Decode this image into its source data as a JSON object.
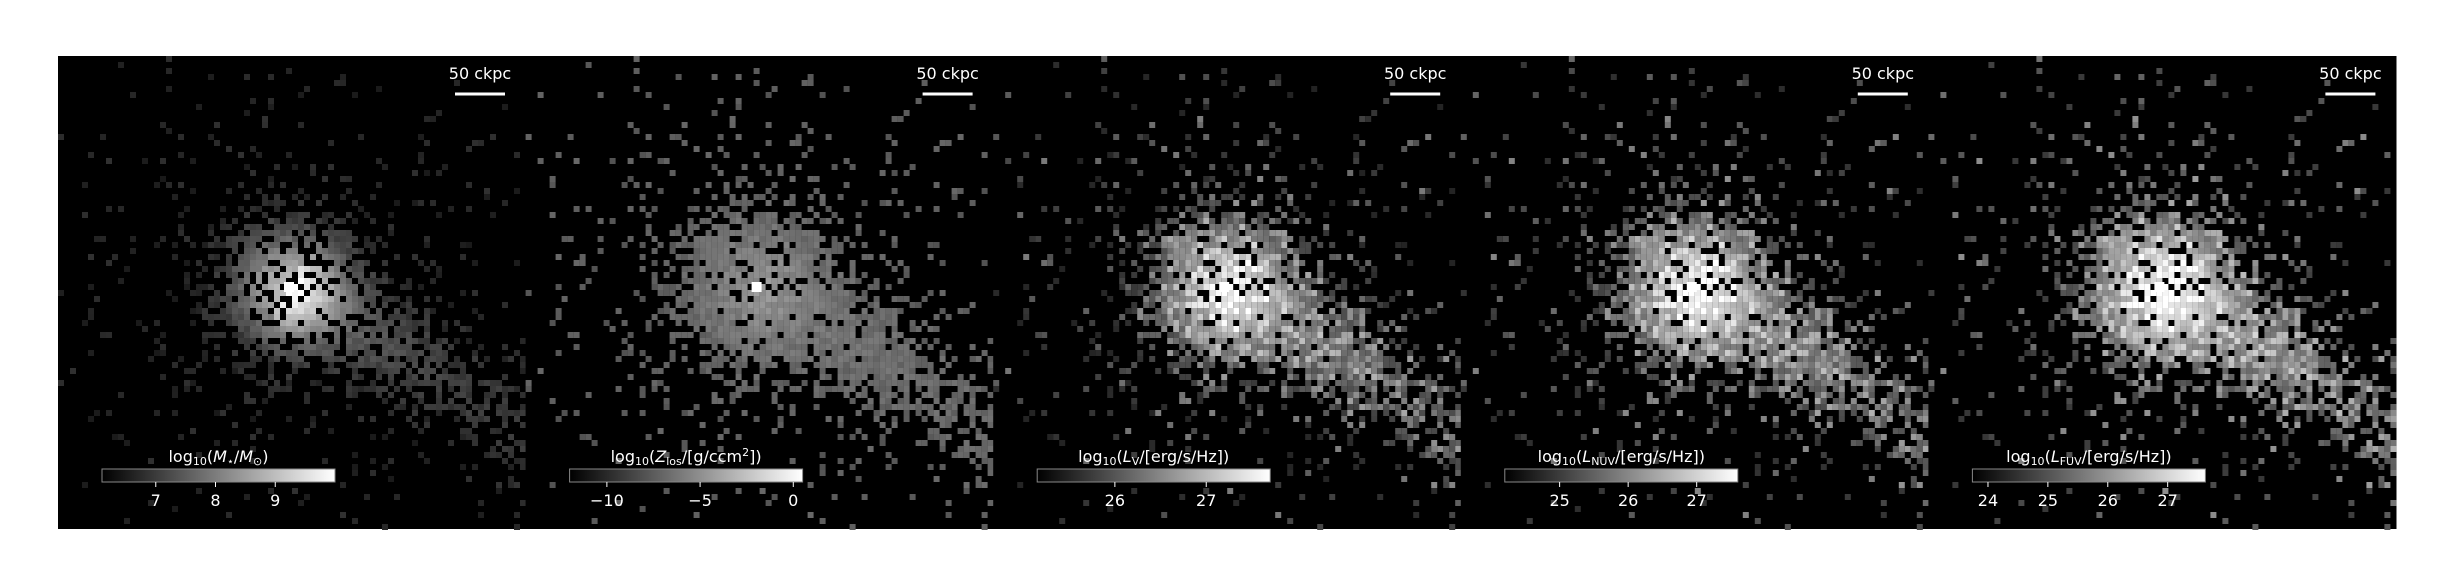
{
  "chart_data": [
    {
      "type": "image",
      "scale_bar_label": "50 ckpc",
      "colorbar_label": [
        {
          "text": "log"
        },
        {
          "text": "10",
          "sub": true
        },
        {
          "text": "("
        },
        {
          "text": "M",
          "italic": true
        },
        {
          "text": "⋆",
          "sub": true
        },
        {
          "text": "/"
        },
        {
          "text": "M",
          "italic": true
        },
        {
          "text": "⊙",
          "sub": true
        },
        {
          "text": ")"
        }
      ],
      "clim": [
        6.1,
        10.0
      ],
      "cticks": [
        7,
        8,
        9
      ]
    },
    {
      "type": "image",
      "scale_bar_label": "50 ckpc",
      "colorbar_label": [
        {
          "text": "log"
        },
        {
          "text": "10",
          "sub": true
        },
        {
          "text": "("
        },
        {
          "text": "Z",
          "italic": true
        },
        {
          "text": "los",
          "sub": true
        },
        {
          "text": "/[g/ccm"
        },
        {
          "text": "2",
          "sup": true
        },
        {
          "text": "])"
        }
      ],
      "clim": [
        -12.0,
        0.5
      ],
      "cticks": [
        {
          "value": -10,
          "label": "−10"
        },
        {
          "value": -5,
          "label": "−5"
        },
        0
      ]
    },
    {
      "type": "image",
      "scale_bar_label": "50 ckpc",
      "colorbar_label": [
        {
          "text": "log"
        },
        {
          "text": "10",
          "sub": true
        },
        {
          "text": "("
        },
        {
          "text": "L",
          "italic": true
        },
        {
          "text": "V",
          "sub": true
        },
        {
          "text": "/[erg/s/Hz])"
        }
      ],
      "clim": [
        25.15,
        27.7
      ],
      "cticks": [
        26,
        27
      ]
    },
    {
      "type": "image",
      "scale_bar_label": "50 ckpc",
      "colorbar_label": [
        {
          "text": "log"
        },
        {
          "text": "10",
          "sub": true
        },
        {
          "text": "("
        },
        {
          "text": "L",
          "italic": true
        },
        {
          "text": "NUV",
          "sub": true
        },
        {
          "text": "/[erg/s/Hz])"
        }
      ],
      "clim": [
        24.2,
        27.6
      ],
      "cticks": [
        25,
        26,
        27
      ]
    },
    {
      "type": "image",
      "scale_bar_label": "50 ckpc",
      "colorbar_label": [
        {
          "text": "log"
        },
        {
          "text": "10",
          "sub": true
        },
        {
          "text": "("
        },
        {
          "text": "L",
          "italic": true
        },
        {
          "text": "FUV",
          "sub": true
        },
        {
          "text": "/[erg/s/Hz])"
        }
      ],
      "clim": [
        23.74,
        27.63
      ],
      "cticks": [
        24,
        25,
        26,
        27
      ]
    }
  ]
}
